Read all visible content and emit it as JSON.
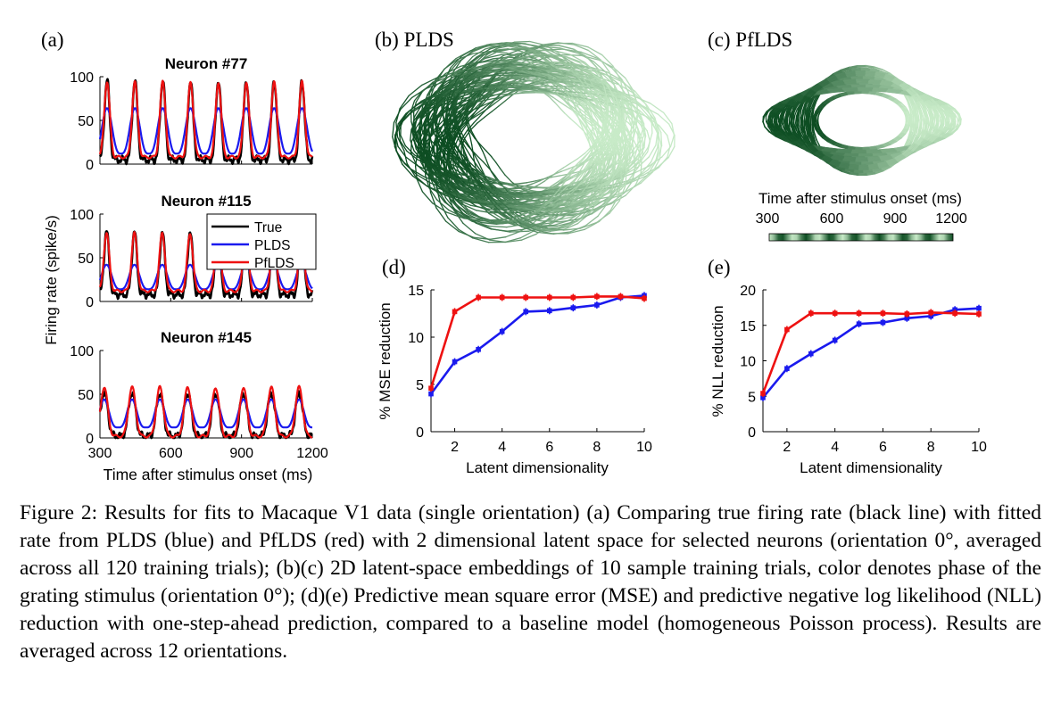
{
  "figure": {
    "panel_labels": {
      "a": "(a)",
      "b": "(b) PLDS",
      "c": "(c) PfLDS",
      "d": "(d)",
      "e": "(e)"
    },
    "caption": "Figure 2: Results for fits to Macaque V1 data (single orientation) (a) Comparing true firing rate (black line) with fitted rate from PLDS (blue) and PfLDS (red) with 2 dimensional latent space for selected neurons (orientation 0°, averaged across all 120 training trials); (b)(c) 2D latent-space embeddings of 10 sample training trials, color denotes phase of the grating stimulus (orientation 0°); (d)(e) Predictive mean square error (MSE) and predictive negative log likelihood (NLL) reduction with one-step-ahead prediction, compared to a baseline model (homogeneous Poisson process). Results are averaged across 12 orientations."
  },
  "colors": {
    "true": "#000000",
    "plds": "#1a1aee",
    "pflds": "#ee1111",
    "green_dark": "#0d4d22",
    "green_light": "#c8ebc8"
  },
  "chart_data": [
    {
      "id": "a",
      "type": "line",
      "ylabel": "Firing rate (spike/s)",
      "xlabel": "Time after stimulus onset (ms)",
      "xlim": [
        300,
        1200
      ],
      "ylim": [
        0,
        100
      ],
      "xticks": [
        300,
        600,
        900,
        1200
      ],
      "yticks": [
        0,
        50,
        100
      ],
      "legend": {
        "placement": "right of Neuron #115 panel",
        "entries": [
          "True",
          "PLDS",
          "PfLDS"
        ]
      },
      "subplots": [
        {
          "title": "Neuron #77",
          "period": 118,
          "phase": 330,
          "true": {
            "base": 5,
            "amp": 92,
            "sharp": 6
          },
          "plds": {
            "base": 12,
            "amp": 52,
            "sharp": 1.6
          },
          "pflds": {
            "base": 8,
            "amp": 86,
            "sharp": 5
          }
        },
        {
          "title": "Neuron #115",
          "period": 118,
          "phase": 328,
          "true": {
            "base": 8,
            "amp": 72,
            "sharp": 6
          },
          "plds": {
            "base": 14,
            "amp": 28,
            "sharp": 1.6
          },
          "pflds": {
            "base": 12,
            "amp": 66,
            "sharp": 5
          }
        },
        {
          "title": "Neuron #145",
          "period": 118,
          "phase": 318,
          "true": {
            "base": 2,
            "amp": 50,
            "sharp": 3
          },
          "plds": {
            "base": 12,
            "amp": 32,
            "sharp": 1.8
          },
          "pflds": {
            "base": 2,
            "amp": 56,
            "sharp": 3
          }
        }
      ]
    },
    {
      "id": "b",
      "type": "line",
      "title": "PLDS",
      "description_only": false,
      "trajectory": {
        "rx": [
          88,
          120
        ],
        "ry": [
          62,
          100
        ],
        "loops": 9,
        "drift": 18
      },
      "colorbar_ref": true
    },
    {
      "id": "c",
      "type": "line",
      "title": "PfLDS",
      "trajectory": {
        "rx": [
          52,
          112
        ],
        "ry": [
          32,
          62
        ],
        "loops": 9,
        "drift": 6
      },
      "colorbar": {
        "label": "Time after stimulus onset (ms)",
        "ticks": [
          "300",
          "600",
          "900",
          "1200"
        ]
      }
    },
    {
      "id": "d",
      "type": "line",
      "ylabel": "% MSE reduction",
      "xlabel": "Latent dimensionality",
      "xlim": [
        1,
        10
      ],
      "ylim": [
        0,
        15
      ],
      "xticks": [
        2,
        4,
        6,
        8,
        10
      ],
      "yticks": [
        0,
        5,
        10,
        15
      ],
      "x": [
        1,
        2,
        3,
        4,
        5,
        6,
        7,
        8,
        9,
        10
      ],
      "series": [
        {
          "key": "plds",
          "values": [
            4.0,
            7.4,
            8.7,
            10.6,
            12.7,
            12.8,
            13.1,
            13.4,
            14.2,
            14.4
          ]
        },
        {
          "key": "pflds",
          "values": [
            4.6,
            12.7,
            14.2,
            14.2,
            14.2,
            14.2,
            14.2,
            14.3,
            14.3,
            14.1
          ]
        }
      ]
    },
    {
      "id": "e",
      "type": "line",
      "ylabel": "% NLL reduction",
      "xlabel": "Latent dimensionality",
      "xlim": [
        1,
        10
      ],
      "ylim": [
        0,
        20
      ],
      "xticks": [
        2,
        4,
        6,
        8,
        10
      ],
      "yticks": [
        0,
        5,
        10,
        15,
        20
      ],
      "x": [
        1,
        2,
        3,
        4,
        5,
        6,
        7,
        8,
        9,
        10
      ],
      "series": [
        {
          "key": "plds",
          "values": [
            4.8,
            8.9,
            11.0,
            12.9,
            15.2,
            15.4,
            16.0,
            16.3,
            17.2,
            17.4
          ]
        },
        {
          "key": "pflds",
          "values": [
            5.4,
            14.4,
            16.7,
            16.7,
            16.7,
            16.7,
            16.6,
            16.8,
            16.7,
            16.6
          ]
        }
      ]
    }
  ]
}
